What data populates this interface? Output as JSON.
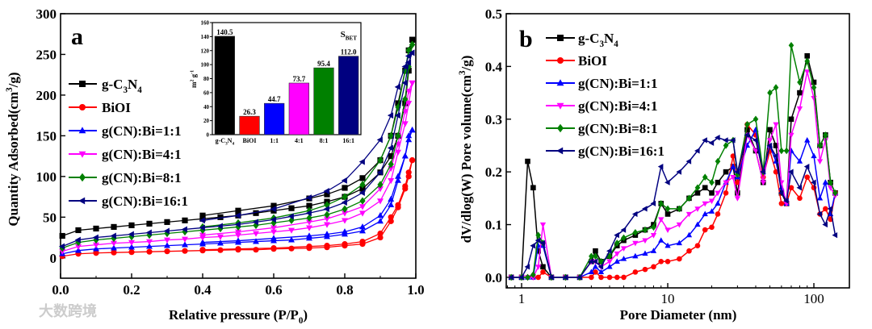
{
  "watermark": "大数跨境",
  "chart_data": [
    {
      "type": "line",
      "panel_label": "a",
      "xlabel": "Relative pressure (P/P0)",
      "ylabel": "Quantity Adsorbed(cm3/g)",
      "xlim": [
        0,
        1.0
      ],
      "ylim": [
        -25,
        300
      ],
      "xticks": [
        "0.0",
        "0.2",
        "0.4",
        "0.6",
        "0.8",
        "1.0"
      ],
      "yticks": [
        "0",
        "50",
        "100",
        "150",
        "200",
        "250",
        "300"
      ],
      "legend_position": "left",
      "adsorption_x": [
        0.005,
        0.05,
        0.1,
        0.15,
        0.2,
        0.25,
        0.3,
        0.35,
        0.4,
        0.45,
        0.5,
        0.55,
        0.6,
        0.65,
        0.7,
        0.75,
        0.8,
        0.85,
        0.9,
        0.93,
        0.95,
        0.97,
        0.98,
        0.99
      ],
      "desorption_x": [
        0.99,
        0.98,
        0.97,
        0.95,
        0.93,
        0.9,
        0.85,
        0.8,
        0.75,
        0.7,
        0.6,
        0.5,
        0.4
      ],
      "series": [
        {
          "name": "g-C3N4",
          "color": "#000000",
          "marker": "square",
          "adsorption": [
            27,
            34,
            36,
            38,
            40,
            42,
            44,
            46,
            48,
            50,
            52,
            55,
            58,
            61,
            64,
            69,
            75,
            85,
            105,
            125,
            150,
            190,
            230,
            268
          ],
          "desorption": [
            268,
            255,
            230,
            190,
            150,
            120,
            98,
            86,
            78,
            73,
            64,
            58,
            52
          ]
        },
        {
          "name": "BiOI",
          "color": "#ff0000",
          "marker": "circle",
          "adsorption": [
            2,
            5,
            6,
            6.5,
            7,
            7.5,
            8,
            8.5,
            9,
            9.5,
            10,
            10,
            11,
            11.5,
            12,
            13,
            15,
            17,
            25,
            45,
            62,
            85,
            100,
            120
          ],
          "desorption": [
            120,
            105,
            88,
            65,
            50,
            30,
            20,
            17,
            15,
            14,
            12,
            11,
            10
          ]
        },
        {
          "name": "g(CN):Bi=1:1",
          "color": "#0000ff",
          "marker": "triangle-up",
          "adsorption": [
            5,
            9,
            11,
            12,
            13,
            14,
            15,
            16,
            17,
            18,
            19,
            20,
            21,
            22,
            24,
            26,
            29,
            33,
            45,
            65,
            95,
            125,
            145,
            157
          ],
          "desorption": [
            157,
            150,
            125,
            100,
            72,
            52,
            38,
            32,
            29,
            27,
            24,
            21,
            19
          ]
        },
        {
          "name": "g(CN):Bi=4:1",
          "color": "#ff00ff",
          "marker": "triangle-down",
          "adsorption": [
            8,
            14,
            16,
            18,
            19,
            20,
            22,
            23,
            25,
            26,
            28,
            30,
            32,
            34,
            37,
            41,
            46,
            55,
            70,
            95,
            130,
            165,
            190,
            215
          ],
          "desorption": [
            215,
            205,
            180,
            140,
            110,
            85,
            63,
            55,
            48,
            44,
            37,
            32,
            28
          ]
        },
        {
          "name": "g(CN):Bi=8:1",
          "color": "#008000",
          "marker": "diamond",
          "adsorption": [
            12,
            19,
            22,
            24,
            26,
            28,
            30,
            32,
            34,
            36,
            38,
            40,
            43,
            46,
            49,
            53,
            60,
            70,
            90,
            115,
            150,
            195,
            235,
            262
          ],
          "desorption": [
            262,
            255,
            230,
            185,
            150,
            120,
            90,
            75,
            65,
            58,
            49,
            43,
            38
          ]
        },
        {
          "name": "g(CN):Bi=16:1",
          "color": "#000080",
          "marker": "triangle-left",
          "adsorption": [
            14,
            22,
            25,
            27,
            29,
            31,
            33,
            35,
            37,
            39,
            41,
            44,
            47,
            51,
            55,
            60,
            68,
            80,
            105,
            135,
            175,
            215,
            240,
            252
          ],
          "desorption": [
            252,
            248,
            235,
            210,
            175,
            145,
            118,
            95,
            82,
            74,
            60,
            52,
            46
          ]
        }
      ]
    },
    {
      "type": "bar",
      "title": "SBET",
      "ylabel": "m2 g-1",
      "ylim": [
        0,
        160
      ],
      "yticks": [
        "0",
        "20",
        "40",
        "60",
        "80",
        "100",
        "120",
        "140",
        "160"
      ],
      "categories": [
        "g-C3N4",
        "BiOI",
        "1:1",
        "4:1",
        "8:1",
        "16:1"
      ],
      "values": [
        140.5,
        26.3,
        44.7,
        73.7,
        95.4,
        112.0
      ],
      "value_labels": [
        "140.5",
        "26.3",
        "44.7",
        "73.7",
        "95.4",
        "112.0"
      ],
      "colors": [
        "#000000",
        "#ff0000",
        "#0000ff",
        "#ff00ff",
        "#008000",
        "#000080"
      ]
    },
    {
      "type": "line",
      "panel_label": "b",
      "xlabel": "Pore Diameter (nm)",
      "ylabel": "dV/dlog(W)  Pore volume(cm3/g)",
      "xscale": "log",
      "xlim": [
        0.785,
        175
      ],
      "ylim": [
        -0.02,
        0.5
      ],
      "xticks": [
        "1",
        "10",
        "100"
      ],
      "yticks": [
        "0.0",
        "0.1",
        "0.2",
        "0.3",
        "0.4",
        "0.5"
      ],
      "legend_position": "top-left",
      "x": [
        0.85,
        1.0,
        1.1,
        1.2,
        1.3,
        1.4,
        1.6,
        2,
        2.5,
        3.0,
        3.2,
        3.5,
        4,
        4.5,
        5,
        6,
        7,
        8,
        9,
        10,
        12,
        14,
        16,
        18,
        20,
        22,
        25,
        28,
        30,
        35,
        40,
        45,
        50,
        55,
        60,
        65,
        70,
        80,
        90,
        100,
        110,
        120,
        130,
        140
      ],
      "series": [
        {
          "name": "g-C3N4",
          "color": "#000000",
          "marker": "square",
          "values": [
            0,
            0,
            0.22,
            0.17,
            0.05,
            0.02,
            0,
            0,
            0,
            0.03,
            0.05,
            0.03,
            0.04,
            0.06,
            0.07,
            0.08,
            0.09,
            0.1,
            0.14,
            0.12,
            0.13,
            0.15,
            0.16,
            0.17,
            0.16,
            0.18,
            0.2,
            0.21,
            0.16,
            0.28,
            0.24,
            0.18,
            0.28,
            0.25,
            0.16,
            0.14,
            0.3,
            0.35,
            0.42,
            0.37,
            0.25,
            0.27,
            0.18,
            0.16
          ]
        },
        {
          "name": "BiOI",
          "color": "#ff0000",
          "marker": "circle",
          "values": [
            0,
            0,
            0,
            0,
            0,
            0.01,
            0,
            0,
            0,
            0,
            0.01,
            0,
            0,
            0,
            0,
            0.01,
            0.015,
            0.02,
            0.03,
            0.03,
            0.035,
            0.05,
            0.06,
            0.09,
            0.095,
            0.12,
            0.16,
            0.23,
            0.18,
            0.29,
            0.27,
            0.19,
            0.24,
            0.2,
            0.14,
            0.14,
            0.17,
            0.15,
            0.19,
            0.17,
            0.12,
            0.13,
            0.11,
            0.16
          ]
        },
        {
          "name": "g(CN):Bi=1:1",
          "color": "#0000ff",
          "marker": "triangle-up",
          "values": [
            0,
            0,
            0,
            0,
            0.06,
            0.06,
            0,
            0,
            0,
            0.01,
            0.02,
            0.01,
            0.02,
            0.03,
            0.035,
            0.04,
            0.045,
            0.05,
            0.07,
            0.06,
            0.065,
            0.08,
            0.1,
            0.12,
            0.125,
            0.14,
            0.18,
            0.21,
            0.19,
            0.25,
            0.28,
            0.2,
            0.25,
            0.22,
            0.17,
            0.14,
            0.24,
            0.22,
            0.26,
            0.23,
            0.15,
            0.18,
            0.12,
            0.16
          ]
        },
        {
          "name": "g(CN):Bi=4:1",
          "color": "#ff00ff",
          "marker": "triangle-down",
          "values": [
            0,
            0,
            0,
            0,
            0.02,
            0.1,
            0,
            0,
            0,
            0.03,
            0.03,
            0.02,
            0.03,
            0.045,
            0.055,
            0.065,
            0.07,
            0.08,
            0.11,
            0.09,
            0.1,
            0.12,
            0.13,
            0.14,
            0.145,
            0.16,
            0.18,
            0.19,
            0.15,
            0.27,
            0.24,
            0.18,
            0.26,
            0.29,
            0.18,
            0.14,
            0.27,
            0.32,
            0.39,
            0.34,
            0.22,
            0.26,
            0.17,
            0.155
          ]
        },
        {
          "name": "g(CN):Bi=8:1",
          "color": "#008000",
          "marker": "diamond",
          "values": [
            0,
            0,
            0,
            0.005,
            0.08,
            0.065,
            0,
            0,
            0,
            0.04,
            0.04,
            0.03,
            0.04,
            0.065,
            0.075,
            0.085,
            0.09,
            0.095,
            0.14,
            0.13,
            0.13,
            0.15,
            0.17,
            0.19,
            0.18,
            0.22,
            0.25,
            0.26,
            0.195,
            0.29,
            0.3,
            0.2,
            0.35,
            0.36,
            0.24,
            0.24,
            0.44,
            0.37,
            0.41,
            0.36,
            0.25,
            0.27,
            0.18,
            0.16
          ]
        },
        {
          "name": "g(CN):Bi=16:1",
          "color": "#000080",
          "marker": "triangle-left",
          "values": [
            0,
            0,
            0.02,
            0.06,
            0.07,
            0.065,
            0,
            0,
            0,
            0.03,
            0.03,
            0.02,
            0.05,
            0.08,
            0.09,
            0.12,
            0.13,
            0.14,
            0.21,
            0.18,
            0.2,
            0.22,
            0.24,
            0.26,
            0.255,
            0.265,
            0.26,
            0.26,
            0.2,
            0.27,
            0.26,
            0.2,
            0.25,
            0.23,
            0.16,
            0.145,
            0.2,
            0.17,
            0.21,
            0.18,
            0.12,
            0.1,
            0.13,
            0.08
          ]
        }
      ]
    }
  ]
}
